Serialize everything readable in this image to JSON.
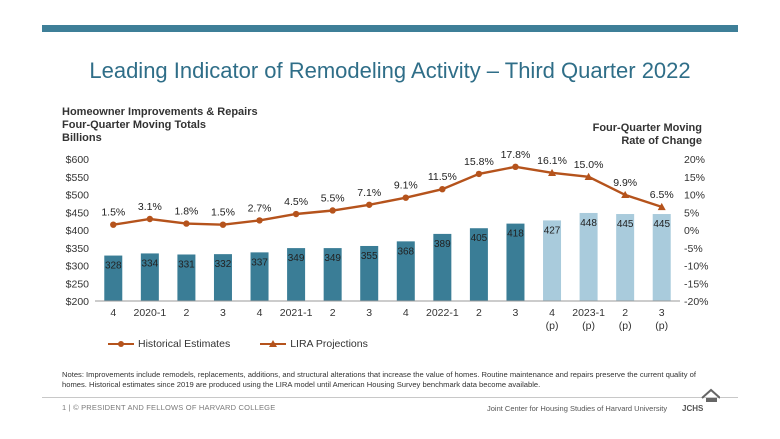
{
  "title": "Leading Indicator of Remodeling Activity – Third Quarter 2022",
  "left_axis_title": [
    "Homeowner Improvements & Repairs",
    "Four-Quarter Moving Totals",
    "Billions"
  ],
  "right_axis_title": [
    "Four-Quarter Moving",
    "Rate of Change"
  ],
  "legend": {
    "historical": "Historical Estimates",
    "projections": "LIRA Projections"
  },
  "notes": "Notes: Improvements include remodels, replacements, additions, and structural alterations that increase the value of homes. Routine maintenance and repairs preserve the current quality of homes. Historical estimates since 2019 are produced using the LIRA model until American Housing Survey benchmark data become available.",
  "footer": {
    "left": "1 | © PRESIDENT AND FELLOWS OF HARVARD COLLEGE",
    "right": "Joint Center for Housing Studies of Harvard University",
    "logo_text": "JCHS"
  },
  "colors": {
    "bar_historical": "#3a7d96",
    "bar_projection": "#a9cbdc",
    "line": "#b5531c",
    "title": "#2f6e88"
  },
  "chart_data": {
    "type": "bar",
    "categories": [
      {
        "line1": "4",
        "line2": ""
      },
      {
        "line1": "2020-1",
        "line2": ""
      },
      {
        "line1": "2",
        "line2": ""
      },
      {
        "line1": "3",
        "line2": ""
      },
      {
        "line1": "4",
        "line2": ""
      },
      {
        "line1": "2021-1",
        "line2": ""
      },
      {
        "line1": "2",
        "line2": ""
      },
      {
        "line1": "3",
        "line2": ""
      },
      {
        "line1": "4",
        "line2": ""
      },
      {
        "line1": "2022-1",
        "line2": ""
      },
      {
        "line1": "2",
        "line2": ""
      },
      {
        "line1": "3",
        "line2": ""
      },
      {
        "line1": "4",
        "line2": "(p)"
      },
      {
        "line1": "2023-1",
        "line2": "(p)"
      },
      {
        "line1": "2",
        "line2": "(p)"
      },
      {
        "line1": "3",
        "line2": "(p)"
      }
    ],
    "bars": {
      "values": [
        328,
        334,
        331,
        332,
        337,
        349,
        349,
        355,
        368,
        389,
        405,
        418,
        427,
        448,
        445,
        445
      ],
      "projected": [
        false,
        false,
        false,
        false,
        false,
        false,
        false,
        false,
        false,
        false,
        false,
        false,
        true,
        true,
        true,
        true
      ],
      "ylim": [
        200,
        600
      ],
      "yticks": [
        "$600",
        "$550",
        "$500",
        "$450",
        "$400",
        "$350",
        "$300",
        "$250",
        "$200"
      ]
    },
    "line": {
      "values": [
        1.5,
        3.1,
        1.8,
        1.5,
        2.7,
        4.5,
        5.5,
        7.1,
        9.1,
        11.5,
        15.8,
        17.8,
        16.1,
        15.0,
        9.9,
        6.5
      ],
      "labels": [
        "1.5%",
        "3.1%",
        "1.8%",
        "1.5%",
        "2.7%",
        "4.5%",
        "5.5%",
        "7.1%",
        "9.1%",
        "11.5%",
        "15.8%",
        "17.8%",
        "16.1%",
        "15.0%",
        "9.9%",
        "6.5%"
      ],
      "ylim": [
        -20,
        20
      ],
      "yticks": [
        "20%",
        "15%",
        "10%",
        "5%",
        "0%",
        "-5%",
        "-10%",
        "-15%",
        "-20%"
      ]
    }
  }
}
